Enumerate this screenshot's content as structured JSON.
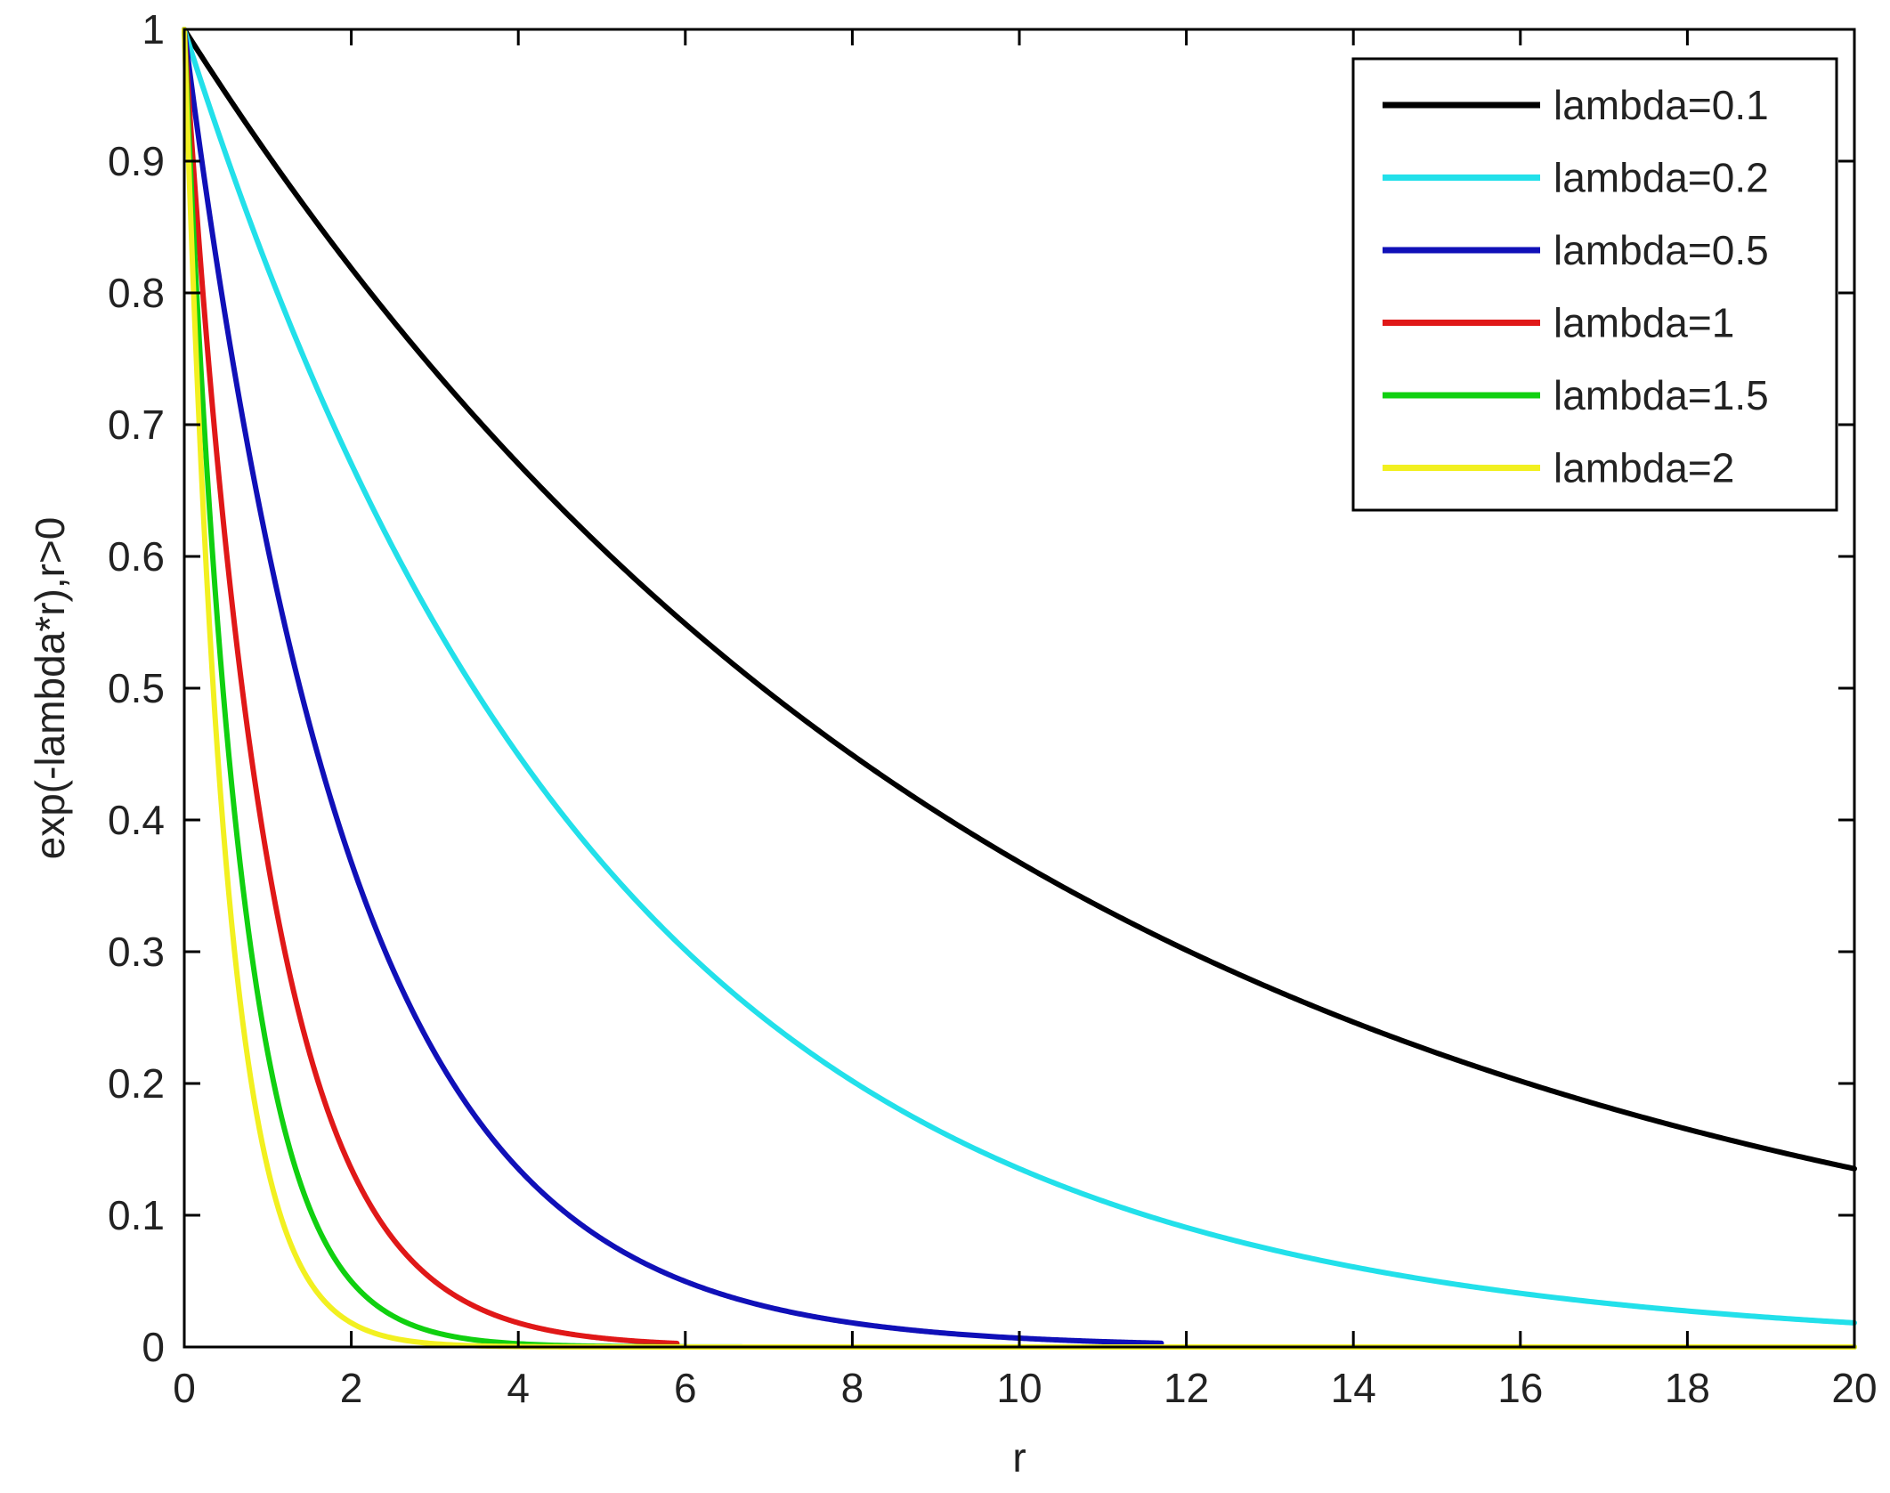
{
  "chart_data": {
    "type": "line",
    "title": "",
    "xlabel": "r",
    "ylabel": "exp(-lambda*r),r>0",
    "xlim": [
      0,
      20
    ],
    "ylim": [
      0,
      1
    ],
    "xticks": [
      0,
      2,
      4,
      6,
      8,
      10,
      12,
      14,
      16,
      18,
      20
    ],
    "yticks": [
      0,
      0.1,
      0.2,
      0.3,
      0.4,
      0.5,
      0.6,
      0.7,
      0.8,
      0.9,
      1
    ],
    "xtick_labels": [
      "0",
      "2",
      "4",
      "6",
      "8",
      "10",
      "12",
      "14",
      "16",
      "18",
      "20"
    ],
    "ytick_labels": [
      "0",
      "0.1",
      "0.2",
      "0.3",
      "0.4",
      "0.5",
      "0.6",
      "0.7",
      "0.8",
      "0.9",
      "1"
    ],
    "grid": false,
    "legend_position": "top-right",
    "function": "exp(-lambda*r)",
    "series": [
      {
        "name": "lambda=0.1",
        "lambda": 0.1,
        "color": "#000000",
        "x_end": 20
      },
      {
        "name": "lambda=0.2",
        "lambda": 0.2,
        "color": "#22e0ea",
        "x_end": 20
      },
      {
        "name": "lambda=0.5",
        "lambda": 0.5,
        "color": "#1010b8",
        "x_end": 11.7
      },
      {
        "name": "lambda=1",
        "lambda": 1,
        "color": "#e01818",
        "x_end": 5.9
      },
      {
        "name": "lambda=1.5",
        "lambda": 1.5,
        "color": "#10d010",
        "x_end": 20
      },
      {
        "name": "lambda=2",
        "lambda": 2,
        "color": "#f2f020",
        "x_end": 20
      }
    ]
  }
}
